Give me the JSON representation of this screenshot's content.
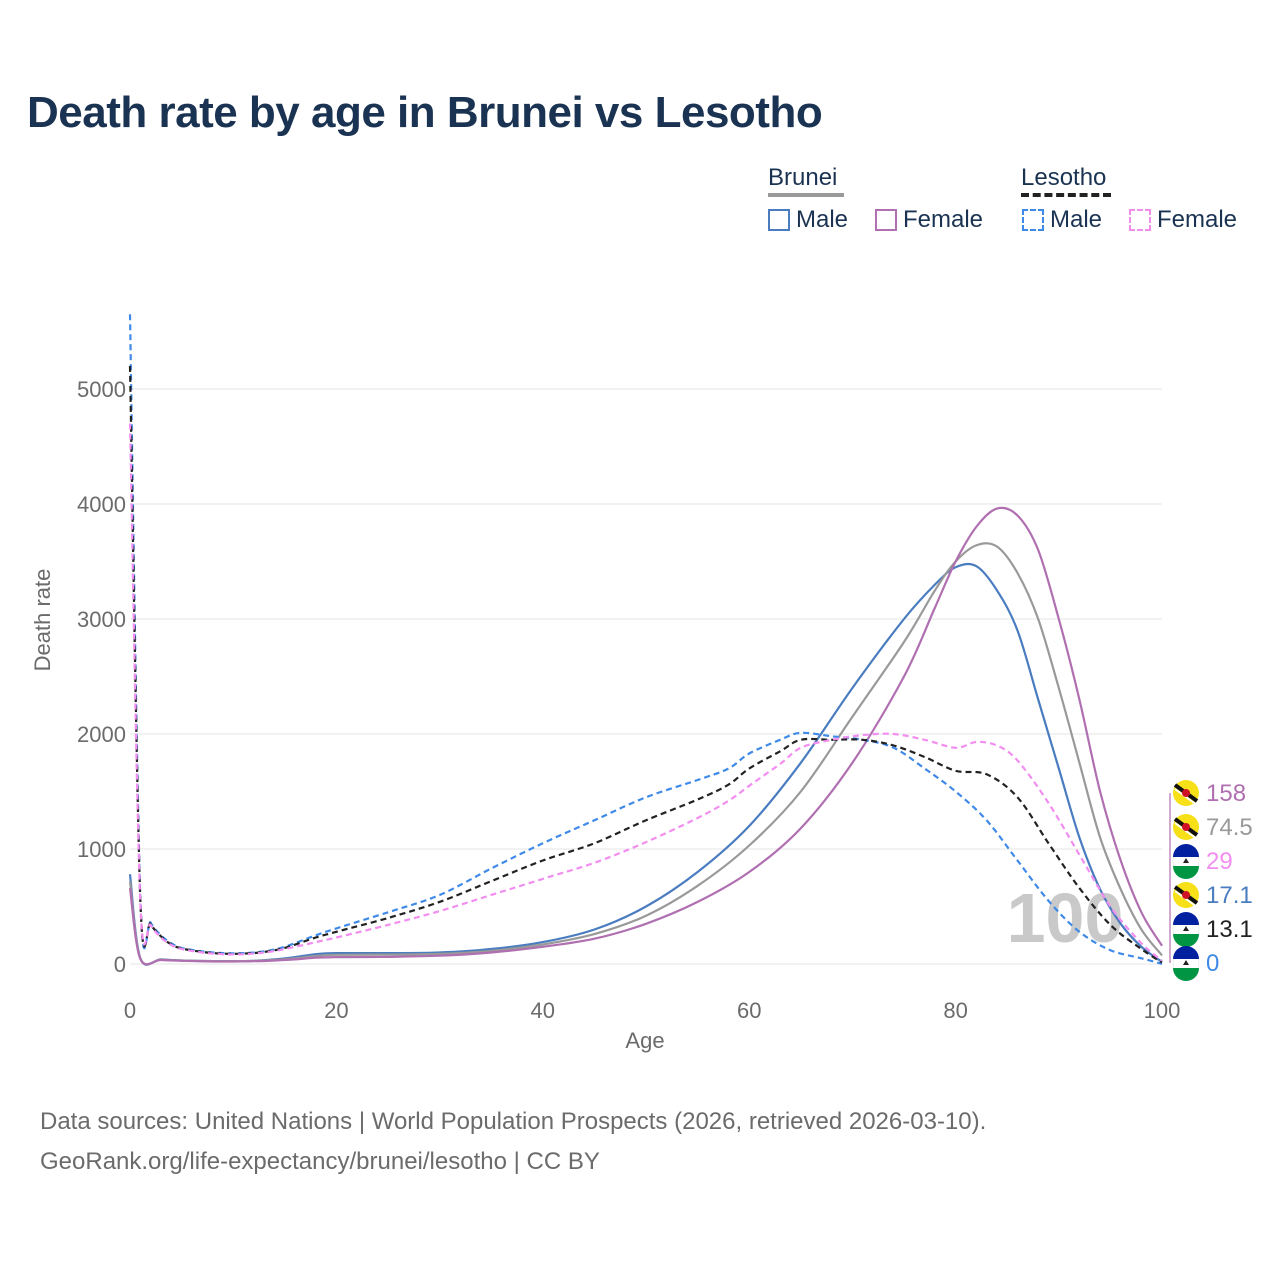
{
  "title": "Death rate by age in Brunei vs Lesotho",
  "legend": {
    "groups": [
      {
        "name": "Brunei",
        "style": "solid",
        "line_color": "#999999",
        "items": [
          {
            "label": "Male",
            "color": "#4a7cc0"
          },
          {
            "label": "Female",
            "color": "#b06fb0"
          }
        ]
      },
      {
        "name": "Lesotho",
        "style": "dashed",
        "line_color": "#222222",
        "items": [
          {
            "label": "Male",
            "color": "#3f8ae8"
          },
          {
            "label": "Female",
            "color": "#f28ef0"
          }
        ]
      }
    ]
  },
  "source": {
    "line1": "Data sources: United Nations | World Population Prospects (2026, retrieved 2026-03-10).",
    "line2": "GeoRank.org/life-expectancy/brunei/lesotho | CC BY"
  },
  "chart_data": {
    "type": "line",
    "title": "Death rate by age in Brunei vs Lesotho",
    "xlabel": "Age",
    "ylabel": "Death rate",
    "xlim": [
      0,
      100
    ],
    "ylim": [
      0,
      5600
    ],
    "xticks": [
      0,
      20,
      40,
      60,
      80,
      100
    ],
    "yticks": [
      0,
      1000,
      2000,
      3000,
      4000,
      5000
    ],
    "grid": true,
    "current_age_label": "100",
    "series": [
      {
        "name": "Brunei Male",
        "country": "Brunei",
        "sex": "Male",
        "color": "#4a7cc0",
        "dashed": false,
        "end_value": "17.1",
        "points": [
          [
            0,
            780
          ],
          [
            1,
            50
          ],
          [
            3,
            40
          ],
          [
            5,
            30
          ],
          [
            8,
            25
          ],
          [
            10,
            25
          ],
          [
            12,
            28
          ],
          [
            14,
            40
          ],
          [
            16,
            60
          ],
          [
            18,
            85
          ],
          [
            20,
            95
          ],
          [
            25,
            95
          ],
          [
            30,
            100
          ],
          [
            35,
            130
          ],
          [
            40,
            190
          ],
          [
            45,
            300
          ],
          [
            50,
            500
          ],
          [
            55,
            800
          ],
          [
            60,
            1200
          ],
          [
            65,
            1750
          ],
          [
            70,
            2400
          ],
          [
            75,
            3000
          ],
          [
            78,
            3300
          ],
          [
            80,
            3450
          ],
          [
            82,
            3460
          ],
          [
            84,
            3250
          ],
          [
            86,
            2900
          ],
          [
            88,
            2300
          ],
          [
            90,
            1700
          ],
          [
            92,
            1100
          ],
          [
            94,
            650
          ],
          [
            96,
            350
          ],
          [
            98,
            150
          ],
          [
            100,
            17.1
          ]
        ]
      },
      {
        "name": "Brunei Total",
        "country": "Brunei",
        "sex": "Total",
        "color": "#999999",
        "dashed": false,
        "end_value": "74.5",
        "points": [
          [
            0,
            720
          ],
          [
            1,
            50
          ],
          [
            3,
            38
          ],
          [
            5,
            30
          ],
          [
            8,
            25
          ],
          [
            10,
            25
          ],
          [
            12,
            27
          ],
          [
            14,
            35
          ],
          [
            16,
            50
          ],
          [
            18,
            70
          ],
          [
            20,
            80
          ],
          [
            25,
            82
          ],
          [
            30,
            88
          ],
          [
            35,
            115
          ],
          [
            40,
            170
          ],
          [
            45,
            260
          ],
          [
            50,
            420
          ],
          [
            55,
            680
          ],
          [
            60,
            1030
          ],
          [
            65,
            1500
          ],
          [
            70,
            2150
          ],
          [
            75,
            2800
          ],
          [
            78,
            3250
          ],
          [
            80,
            3500
          ],
          [
            82,
            3640
          ],
          [
            84,
            3630
          ],
          [
            86,
            3400
          ],
          [
            88,
            3000
          ],
          [
            90,
            2400
          ],
          [
            92,
            1750
          ],
          [
            94,
            1100
          ],
          [
            96,
            650
          ],
          [
            98,
            300
          ],
          [
            100,
            74.5
          ]
        ]
      },
      {
        "name": "Brunei Female",
        "country": "Brunei",
        "sex": "Female",
        "color": "#b06fb0",
        "dashed": false,
        "end_value": "158",
        "points": [
          [
            0,
            660
          ],
          [
            1,
            45
          ],
          [
            3,
            35
          ],
          [
            5,
            28
          ],
          [
            8,
            22
          ],
          [
            10,
            22
          ],
          [
            12,
            24
          ],
          [
            14,
            30
          ],
          [
            16,
            40
          ],
          [
            18,
            55
          ],
          [
            20,
            60
          ],
          [
            25,
            62
          ],
          [
            30,
            72
          ],
          [
            35,
            100
          ],
          [
            40,
            150
          ],
          [
            45,
            220
          ],
          [
            50,
            350
          ],
          [
            55,
            540
          ],
          [
            60,
            800
          ],
          [
            65,
            1180
          ],
          [
            70,
            1750
          ],
          [
            75,
            2500
          ],
          [
            78,
            3100
          ],
          [
            80,
            3500
          ],
          [
            82,
            3800
          ],
          [
            84,
            3960
          ],
          [
            86,
            3900
          ],
          [
            88,
            3600
          ],
          [
            90,
            3000
          ],
          [
            92,
            2300
          ],
          [
            94,
            1500
          ],
          [
            96,
            900
          ],
          [
            98,
            450
          ],
          [
            100,
            158
          ]
        ]
      },
      {
        "name": "Lesotho Male",
        "country": "Lesotho",
        "sex": "Male",
        "color": "#3f8ae8",
        "dashed": true,
        "end_value": "0",
        "points": [
          [
            0,
            5650
          ],
          [
            1,
            580
          ],
          [
            2,
            360
          ],
          [
            3,
            250
          ],
          [
            4,
            180
          ],
          [
            5,
            140
          ],
          [
            7,
            110
          ],
          [
            9,
            95
          ],
          [
            11,
            95
          ],
          [
            13,
            110
          ],
          [
            15,
            150
          ],
          [
            18,
            250
          ],
          [
            20,
            310
          ],
          [
            25,
            450
          ],
          [
            30,
            600
          ],
          [
            35,
            830
          ],
          [
            40,
            1050
          ],
          [
            45,
            1250
          ],
          [
            50,
            1450
          ],
          [
            55,
            1600
          ],
          [
            58,
            1700
          ],
          [
            60,
            1830
          ],
          [
            63,
            1950
          ],
          [
            65,
            2010
          ],
          [
            68,
            1980
          ],
          [
            71,
            1950
          ],
          [
            74,
            1880
          ],
          [
            77,
            1700
          ],
          [
            80,
            1500
          ],
          [
            83,
            1250
          ],
          [
            86,
            900
          ],
          [
            89,
            550
          ],
          [
            92,
            280
          ],
          [
            95,
            120
          ],
          [
            98,
            50
          ],
          [
            100,
            0
          ]
        ]
      },
      {
        "name": "Lesotho Total",
        "country": "Lesotho",
        "sex": "Total",
        "color": "#222222",
        "dashed": true,
        "end_value": "13.1",
        "points": [
          [
            0,
            5200
          ],
          [
            1,
            560
          ],
          [
            2,
            350
          ],
          [
            3,
            240
          ],
          [
            4,
            170
          ],
          [
            5,
            135
          ],
          [
            7,
            105
          ],
          [
            9,
            90
          ],
          [
            11,
            90
          ],
          [
            13,
            105
          ],
          [
            15,
            140
          ],
          [
            18,
            230
          ],
          [
            20,
            280
          ],
          [
            25,
            400
          ],
          [
            30,
            540
          ],
          [
            35,
            720
          ],
          [
            40,
            900
          ],
          [
            45,
            1050
          ],
          [
            50,
            1250
          ],
          [
            55,
            1430
          ],
          [
            58,
            1560
          ],
          [
            60,
            1700
          ],
          [
            63,
            1850
          ],
          [
            65,
            1950
          ],
          [
            68,
            1950
          ],
          [
            71,
            1950
          ],
          [
            74,
            1900
          ],
          [
            77,
            1800
          ],
          [
            80,
            1680
          ],
          [
            83,
            1650
          ],
          [
            86,
            1450
          ],
          [
            89,
            1050
          ],
          [
            92,
            660
          ],
          [
            95,
            340
          ],
          [
            98,
            130
          ],
          [
            100,
            13.1
          ]
        ]
      },
      {
        "name": "Lesotho Female",
        "country": "Lesotho",
        "sex": "Female",
        "color": "#f28ef0",
        "dashed": true,
        "end_value": "29",
        "points": [
          [
            0,
            4700
          ],
          [
            1,
            540
          ],
          [
            2,
            340
          ],
          [
            3,
            230
          ],
          [
            4,
            165
          ],
          [
            5,
            130
          ],
          [
            7,
            100
          ],
          [
            9,
            85
          ],
          [
            11,
            85
          ],
          [
            13,
            100
          ],
          [
            15,
            130
          ],
          [
            18,
            190
          ],
          [
            20,
            230
          ],
          [
            25,
            340
          ],
          [
            30,
            460
          ],
          [
            35,
            600
          ],
          [
            40,
            740
          ],
          [
            45,
            880
          ],
          [
            50,
            1060
          ],
          [
            55,
            1270
          ],
          [
            58,
            1420
          ],
          [
            60,
            1550
          ],
          [
            63,
            1740
          ],
          [
            65,
            1880
          ],
          [
            68,
            1950
          ],
          [
            71,
            1990
          ],
          [
            74,
            2000
          ],
          [
            77,
            1950
          ],
          [
            80,
            1880
          ],
          [
            82,
            1930
          ],
          [
            84,
            1900
          ],
          [
            86,
            1770
          ],
          [
            89,
            1400
          ],
          [
            92,
            950
          ],
          [
            95,
            500
          ],
          [
            98,
            180
          ],
          [
            100,
            29
          ]
        ]
      }
    ]
  }
}
